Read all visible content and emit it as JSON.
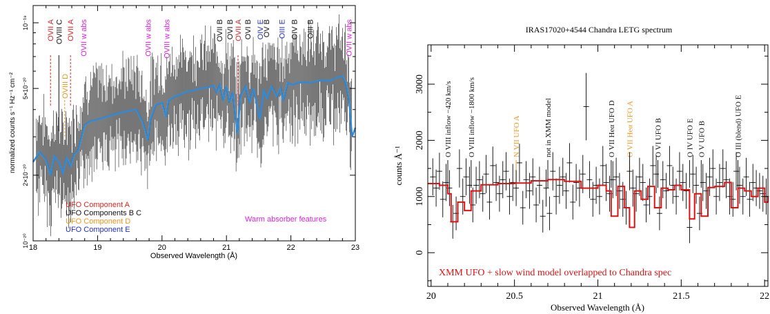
{
  "colors": {
    "red": "#e8231f",
    "black": "#111111",
    "orange": "#f2941c",
    "blue": "#1f2fd6",
    "magenta": "#e020e0",
    "model_blue": "#2f8ad8",
    "model_red": "#e01010",
    "data_gray": "#555555"
  },
  "chart_data": [
    {
      "type": "line",
      "xlabel": "Observed Wavelength (Å)",
      "ylabel": "normalized counts s⁻¹ Hz⁻¹ cm⁻²",
      "xlim": [
        18,
        23
      ],
      "ylim_log": [
        1e-20,
        1.2e-19
      ],
      "y_scale": "log",
      "x_ticks": [
        "18",
        "19",
        "20",
        "21",
        "22",
        "23"
      ],
      "y_ticks": [
        {
          "value": 1e-20,
          "label": "10⁻²⁰"
        },
        {
          "value": 2e-20,
          "label": "2×10⁻²⁰"
        },
        {
          "value": 5e-20,
          "label": "5×10⁻²⁰"
        },
        {
          "value": 1e-19,
          "label": "10⁻¹⁹"
        }
      ],
      "legend": [
        {
          "label": "UFO Component A",
          "color": "red"
        },
        {
          "label": "UFO Components B C",
          "color": "black"
        },
        {
          "label": "UFO Component D",
          "color": "orange"
        },
        {
          "label": "UFO Component E",
          "color": "blue"
        }
      ],
      "note": "Warm absorber features",
      "line_labels": [
        {
          "text": "OVII A",
          "x": 18.27,
          "color": "red",
          "dashed": true
        },
        {
          "text": "OVIII C",
          "x": 18.4,
          "color": "black"
        },
        {
          "text": "OVIII D",
          "x": 18.49,
          "color": "orange",
          "low": true
        },
        {
          "text": "OVII A",
          "x": 18.58,
          "color": "red",
          "dashed": true
        },
        {
          "text": "OVII w abs",
          "x": 18.78,
          "color": "magenta",
          "noline": true
        },
        {
          "text": "OVII w abs",
          "x": 19.78,
          "color": "magenta",
          "noline": true
        },
        {
          "text": "OVIII w abs",
          "x": 20.07,
          "color": "magenta",
          "noline": true
        },
        {
          "text": "OVII B",
          "x": 20.89,
          "color": "black",
          "noline": true
        },
        {
          "text": "OVI B",
          "x": 21.05,
          "color": "black",
          "noline": true
        },
        {
          "text": "OVII A",
          "x": 21.18,
          "color": "red",
          "dashed": true
        },
        {
          "text": "OVI B",
          "x": 21.33,
          "color": "black",
          "noline": true
        },
        {
          "text": "OIV E",
          "x": 21.52,
          "color": "blue",
          "noline": true
        },
        {
          "text": "OV B",
          "x": 21.62,
          "color": "black",
          "noline": true
        },
        {
          "text": "OIII E",
          "x": 21.86,
          "color": "blue",
          "noline": true
        },
        {
          "text": "OIV B",
          "x": 22.05,
          "color": "black",
          "noline": true
        },
        {
          "text": "OIII B",
          "x": 22.3,
          "color": "black",
          "noline": true
        },
        {
          "text": "OVII w abs",
          "x": 22.9,
          "color": "magenta",
          "noline": true
        }
      ],
      "model": {
        "x": [
          18.0,
          18.1,
          18.2,
          18.27,
          18.33,
          18.4,
          18.46,
          18.52,
          18.58,
          18.64,
          18.7,
          18.8,
          18.9,
          19.0,
          19.2,
          19.4,
          19.6,
          19.7,
          19.78,
          19.82,
          19.9,
          20.0,
          20.06,
          20.1,
          20.2,
          20.3,
          20.4,
          20.5,
          20.6,
          20.7,
          20.8,
          20.85,
          20.9,
          20.95,
          21.0,
          21.05,
          21.1,
          21.17,
          21.22,
          21.3,
          21.36,
          21.42,
          21.48,
          21.52,
          21.58,
          21.63,
          21.7,
          21.78,
          21.84,
          21.88,
          21.95,
          22.02,
          22.1,
          22.2,
          22.3,
          22.4,
          22.5,
          22.6,
          22.7,
          22.8,
          22.85,
          22.9,
          22.95,
          23.0
        ],
        "y": [
          2.3e-20,
          2.55e-20,
          2.35e-20,
          2e-20,
          2.45e-20,
          2.3e-20,
          2.05e-20,
          2.4e-20,
          2.2e-20,
          2.5e-20,
          2.6e-20,
          3.4e-20,
          3.55e-20,
          3.6e-20,
          3.75e-20,
          3.9e-20,
          4e-20,
          3.5e-20,
          2.9e-20,
          3.6e-20,
          4.2e-20,
          4.3e-20,
          3.7e-20,
          4.4e-20,
          4.6e-20,
          4.7e-20,
          4.85e-20,
          4.9e-20,
          5e-20,
          5.05e-20,
          5.15e-20,
          4.8e-20,
          5.2e-20,
          4.4e-20,
          5.1e-20,
          4.3e-20,
          4.8e-20,
          3.1e-20,
          4.6e-20,
          5.1e-20,
          4.3e-20,
          5e-20,
          4.1e-20,
          3.6e-20,
          4.9e-20,
          4.5e-20,
          5.1e-20,
          4.6e-20,
          5e-20,
          4.4e-20,
          5.3e-20,
          5.2e-20,
          5.3e-20,
          5.35e-20,
          5.3e-20,
          5.4e-20,
          5.45e-20,
          5.4e-20,
          5.6e-20,
          5.7e-20,
          5.3e-20,
          4.5e-20,
          3e-20,
          3.3e-20
        ]
      }
    },
    {
      "type": "line",
      "title": "IRAS17020+4544 Chandra LETG spectrum",
      "xlabel": "Observed Wavelength (Å)",
      "ylabel": "counts Å⁻¹",
      "xlim": [
        19.98,
        22.02
      ],
      "ylim": [
        -600,
        3700
      ],
      "x_ticks": [
        20,
        20.5,
        21,
        21.5,
        22
      ],
      "x_tick_labels": [
        "20",
        "20.5",
        "21",
        "21.5",
        "22"
      ],
      "y_ticks": [
        0,
        1000,
        2000,
        3000
      ],
      "y_tick_labels": [
        "0",
        "1000",
        "2000",
        "3000"
      ],
      "annotation": "XMM UFO + slow wind model overlapped to Chandra spec",
      "line_labels": [
        {
          "text": "O VIII inflow −420 km/s",
          "x": 20.1,
          "color": "black"
        },
        {
          "text": "O VIII inflow −1800 km/s",
          "x": 20.24,
          "color": "black"
        },
        {
          "text": "N VII  UFO A",
          "x": 20.51,
          "color": "orange"
        },
        {
          "text": "not in XMM model",
          "x": 20.7,
          "color": "black"
        },
        {
          "text": "O VII Heα  UFO D",
          "x": 21.08,
          "color": "black"
        },
        {
          "text": "O VII Heα  UFO A",
          "x": 21.19,
          "color": "orange"
        },
        {
          "text": "O VI  UFO B",
          "x": 21.36,
          "color": "black"
        },
        {
          "text": "O IV  UFO E",
          "x": 21.55,
          "color": "black"
        },
        {
          "text": "O V  UFO B",
          "x": 21.62,
          "color": "black"
        },
        {
          "text": "O III (blend) UFO E",
          "x": 21.84,
          "color": "black"
        }
      ],
      "model": {
        "x": [
          19.98,
          20.05,
          20.1,
          20.12,
          20.16,
          20.2,
          20.24,
          20.3,
          20.4,
          20.5,
          20.6,
          20.7,
          20.8,
          20.9,
          21.0,
          21.05,
          21.08,
          21.12,
          21.16,
          21.19,
          21.22,
          21.26,
          21.3,
          21.34,
          21.38,
          21.42,
          21.46,
          21.5,
          21.55,
          21.58,
          21.62,
          21.66,
          21.7,
          21.76,
          21.8,
          21.84,
          21.88,
          21.92,
          21.96,
          22.0,
          22.02
        ],
        "y": [
          1230,
          1200,
          1050,
          550,
          900,
          750,
          1100,
          1210,
          1230,
          1240,
          1280,
          1300,
          1270,
          1150,
          1200,
          1100,
          650,
          1180,
          800,
          450,
          1100,
          950,
          1180,
          800,
          1150,
          1120,
          1200,
          1120,
          600,
          1050,
          650,
          1160,
          1180,
          1250,
          800,
          1150,
          1100,
          1000,
          1150,
          900,
          1000
        ]
      },
      "data": {
        "x": [
          20.01,
          20.03,
          20.05,
          20.07,
          20.09,
          20.11,
          20.13,
          20.15,
          20.17,
          20.19,
          20.21,
          20.23,
          20.25,
          20.27,
          20.29,
          20.31,
          20.33,
          20.35,
          20.37,
          20.39,
          20.41,
          20.43,
          20.45,
          20.47,
          20.49,
          20.51,
          20.53,
          20.55,
          20.57,
          20.59,
          20.61,
          20.63,
          20.65,
          20.67,
          20.69,
          20.71,
          20.73,
          20.75,
          20.77,
          20.79,
          20.81,
          20.83,
          20.85,
          20.87,
          20.89,
          20.91,
          20.93,
          20.95,
          20.97,
          20.99,
          21.01,
          21.03,
          21.05,
          21.07,
          21.09,
          21.11,
          21.13,
          21.15,
          21.17,
          21.19,
          21.21,
          21.23,
          21.25,
          21.27,
          21.29,
          21.31,
          21.33,
          21.35,
          21.37,
          21.39,
          21.41,
          21.43,
          21.45,
          21.47,
          21.49,
          21.51,
          21.53,
          21.55,
          21.57,
          21.59,
          21.61,
          21.63,
          21.65,
          21.67,
          21.69,
          21.71,
          21.73,
          21.75,
          21.77,
          21.79,
          21.81,
          21.83,
          21.85,
          21.87,
          21.89,
          21.91,
          21.93,
          21.95,
          21.97,
          21.99,
          22.01
        ],
        "y": [
          1350,
          1150,
          1450,
          950,
          1250,
          1150,
          550,
          700,
          1500,
          1000,
          1350,
          1200,
          850,
          1200,
          1300,
          1050,
          1400,
          900,
          1550,
          1250,
          1050,
          1300,
          1450,
          1000,
          1250,
          1150,
          1600,
          800,
          1300,
          1100,
          1350,
          850,
          1200,
          650,
          1150,
          700,
          1450,
          1000,
          1200,
          1350,
          1100,
          1600,
          900,
          1250,
          1150,
          1400,
          2600,
          1300,
          950,
          1200,
          1000,
          1550,
          1250,
          1050,
          1300,
          1350,
          1100,
          950,
          800,
          1450,
          1150,
          1050,
          1350,
          1250,
          850,
          1000,
          1550,
          1400,
          700,
          1300,
          1100,
          1550,
          1200,
          1000,
          1450,
          1250,
          1100,
          450,
          1400,
          1200,
          700,
          1250,
          1100,
          1350,
          1500,
          1000,
          1250,
          1500,
          1300,
          1000,
          950,
          1450,
          1200,
          1000,
          1350,
          950,
          1250,
          1150,
          1100,
          1050,
          1000
        ],
        "err": [
          330,
          330,
          330,
          320,
          330,
          320,
          300,
          300,
          340,
          320,
          330,
          330,
          310,
          330,
          330,
          320,
          340,
          310,
          340,
          330,
          320,
          330,
          340,
          320,
          330,
          320,
          340,
          300,
          330,
          320,
          330,
          310,
          330,
          290,
          330,
          300,
          340,
          320,
          330,
          340,
          320,
          350,
          310,
          330,
          330,
          340,
          600,
          330,
          310,
          330,
          320,
          350,
          330,
          320,
          330,
          340,
          320,
          310,
          300,
          340,
          330,
          320,
          340,
          330,
          310,
          320,
          350,
          340,
          300,
          330,
          320,
          350,
          330,
          320,
          340,
          330,
          320,
          280,
          340,
          330,
          300,
          330,
          320,
          340,
          340,
          320,
          330,
          340,
          330,
          320,
          310,
          340,
          330,
          320,
          340,
          310,
          330,
          320,
          320,
          320,
          320
        ]
      }
    }
  ]
}
